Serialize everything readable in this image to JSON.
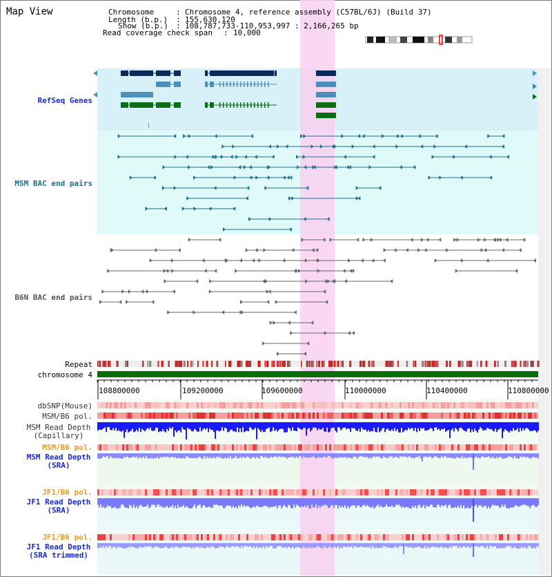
{
  "view_title": "Map View",
  "header": {
    "chromosome_label": "Chromosome",
    "chromosome_value": "Chromosome 4, reference assembly (C57BL/6J) (Build 37)",
    "length_label": "Length (b.p.)",
    "length_value": "155,630,120",
    "show_label": "Show (b.p.)",
    "show_value": "108,787,733-110,953,997 : 2,166,265 bp",
    "coverage_label": "Read coverage check span",
    "coverage_value": "10,000"
  },
  "tracks": {
    "refseq": "RefSeq Genes",
    "msm_bac": "MSM BAC end pairs",
    "b6n_bac": "B6N BAC end pairs",
    "repeat": "Repeat",
    "chromosome": "chromosome 4",
    "dbsnp": "dbSNP(Mouse)",
    "msm_b6_pol": "MSM/B6 pol.",
    "msm_depth_cap_1": "MSM Read Depth",
    "msm_depth_cap_2": "(Capillary)",
    "msm_b6_pol_sra": "MSM/B6 pol.",
    "msm_depth_sra_1": "MSM Read Depth",
    "msm_depth_sra_2": "(SRA)",
    "jf1_b6_pol": "JF1/B6 pol.",
    "jf1_depth_sra_1": "JF1 Read Depth",
    "jf1_depth_sra_2": "(SRA)",
    "jf1_b6_pol_trim": "JF1/B6 pol.",
    "jf1_depth_trim_1": "JF1 Read Depth",
    "jf1_depth_trim_2": "(SRA trimmed)"
  },
  "axis_ticks": [
    "108800000",
    "109200000",
    "109600000",
    "110000000",
    "110400000",
    "110800000"
  ],
  "colors": {
    "highlight": "#f9d0f0",
    "refseq_bg": "#d8f0f8",
    "bac_bg": "#e0fafa",
    "sra_bg": "#eef8ee",
    "gene_navy": "#0a2a5a",
    "gene_light": "#4a90b8",
    "gene_green": "#0a6e14",
    "msm_color": "#1a6e8e",
    "b6n_color": "#555555",
    "chromosome": "#0a6e0a",
    "orange_label": "#e89a1a",
    "blue_label": "#1a2ad0"
  }
}
